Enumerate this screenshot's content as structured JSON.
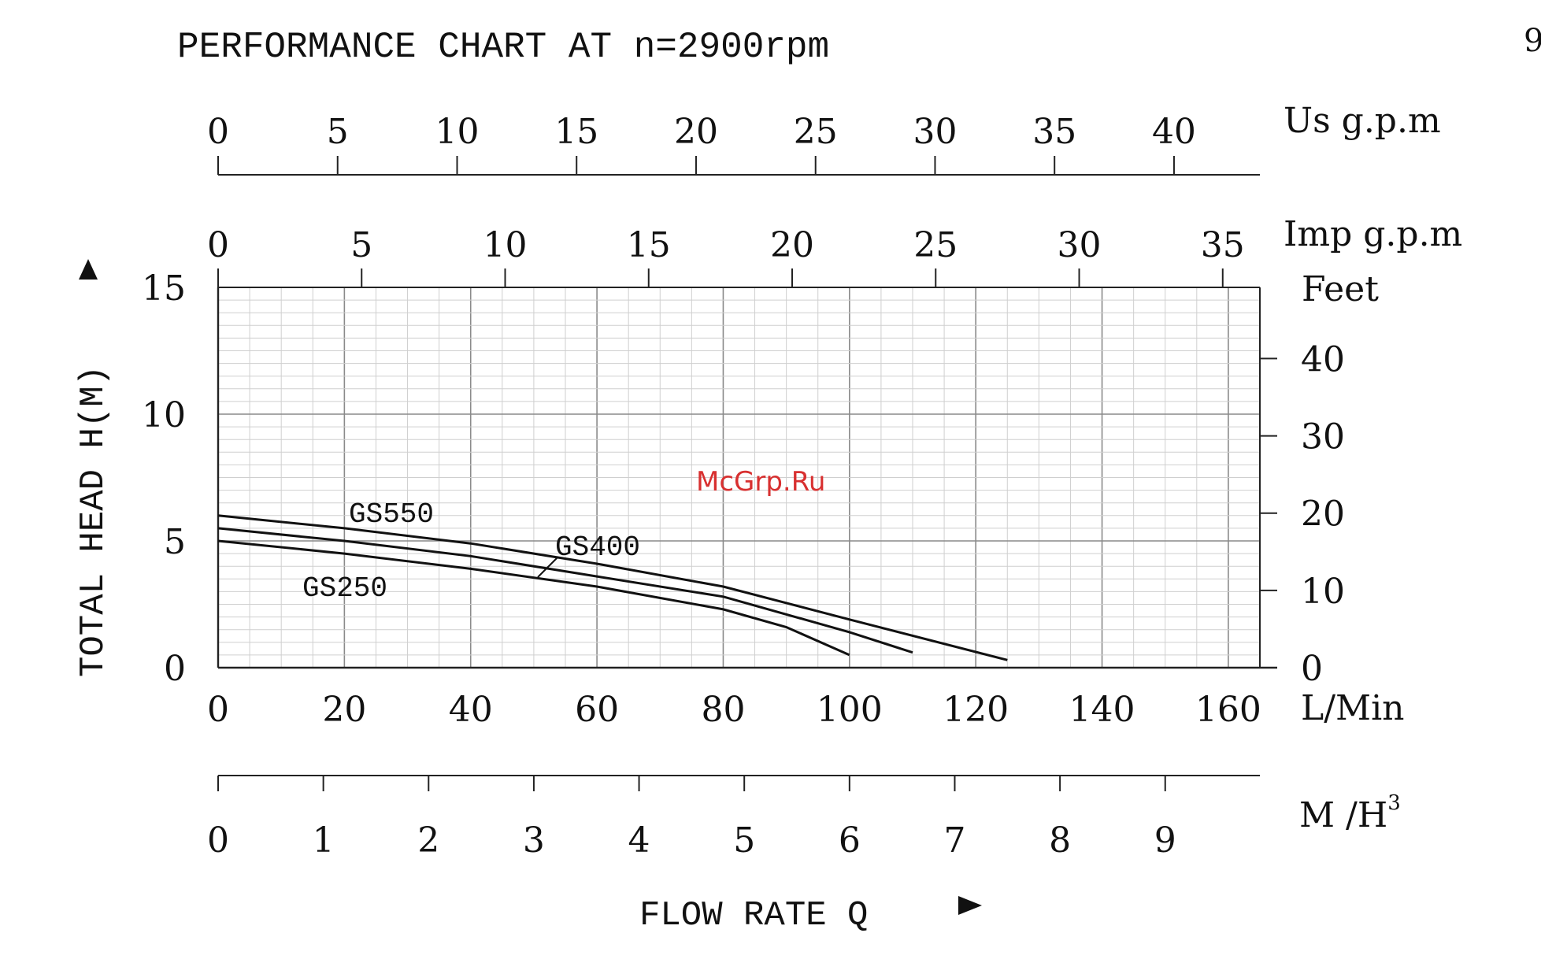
{
  "page_number": "9",
  "watermark": "McGrp.Ru",
  "chart_data": {
    "type": "line",
    "title": "PERFORMANCE CHART AT n=2900rpm",
    "xlabel": "FLOW RATE Q",
    "ylabel": "TOTAL HEAD H(M)",
    "xlim": [
      0,
      165
    ],
    "ylim": [
      0,
      15
    ],
    "grid": true,
    "x_ticks": [
      "0",
      "20",
      "40",
      "60",
      "80",
      "100",
      "120",
      "140",
      "160"
    ],
    "x_unit": "L/Min",
    "y_ticks": [
      "0",
      "5",
      "10",
      "15"
    ],
    "secondary_axes": {
      "us_gpm": {
        "unit": "Us g.p.m",
        "ticks": [
          "0",
          "5",
          "10",
          "15",
          "20",
          "25",
          "30",
          "35",
          "40"
        ]
      },
      "imp_gpm": {
        "unit": "Imp g.p.m",
        "ticks": [
          "0",
          "5",
          "10",
          "15",
          "20",
          "25",
          "30",
          "35"
        ]
      },
      "feet": {
        "unit": "Feet",
        "ticks": [
          "0",
          "10",
          "20",
          "30",
          "40"
        ]
      },
      "m3h": {
        "unit": "M /H",
        "unit_sup": "3",
        "ticks": [
          "0",
          "1",
          "2",
          "3",
          "4",
          "5",
          "6",
          "7",
          "8",
          "9"
        ]
      }
    },
    "series": [
      {
        "name": "GS550",
        "x": [
          0,
          20,
          40,
          60,
          80,
          100,
          125
        ],
        "y": [
          6.0,
          5.5,
          4.9,
          4.1,
          3.2,
          1.9,
          0.3
        ]
      },
      {
        "name": "GS400",
        "x": [
          0,
          20,
          40,
          60,
          80,
          100,
          110
        ],
        "y": [
          5.5,
          5.0,
          4.4,
          3.6,
          2.8,
          1.4,
          0.6
        ]
      },
      {
        "name": "GS250",
        "x": [
          0,
          20,
          40,
          60,
          80,
          90,
          100
        ],
        "y": [
          5.0,
          4.5,
          3.9,
          3.2,
          2.3,
          1.6,
          0.5
        ]
      }
    ]
  }
}
